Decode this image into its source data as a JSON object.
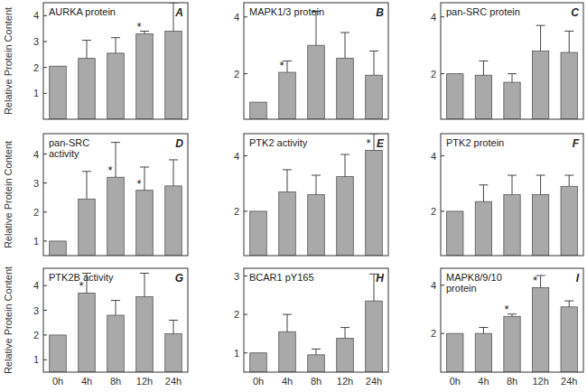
{
  "chart_data": [
    {
      "type": "bar",
      "panel": "A",
      "title": "AURKA protein",
      "ylabel": "Relative Protein Content",
      "categories": [
        "0h",
        "4h",
        "8h",
        "12h",
        "24h"
      ],
      "values": [
        2.05,
        2.35,
        2.55,
        3.3,
        3.4
      ],
      "errors": [
        0,
        0.7,
        0.6,
        0.1,
        1.1
      ],
      "significance": [
        null,
        null,
        null,
        "*",
        null
      ],
      "color": "#a9a9a9",
      "ylim": [
        0,
        4.5
      ],
      "yticks": [
        1,
        2,
        3,
        4
      ],
      "tick_labels": "y"
    },
    {
      "type": "bar",
      "panel": "B",
      "title": "MAPK1/3 protein",
      "categories": [
        "0h",
        "4h",
        "8h",
        "12h",
        "24h"
      ],
      "values": [
        1.0,
        2.05,
        3.0,
        2.55,
        1.95
      ],
      "errors": [
        0,
        0.4,
        1.2,
        0.9,
        0.85
      ],
      "significance": [
        null,
        "*",
        null,
        null,
        null
      ],
      "color": "#a9a9a9",
      "ylim": [
        0.4,
        4.5
      ],
      "yticks": [
        2,
        4
      ],
      "tick_labels": "y"
    },
    {
      "type": "bar",
      "panel": "C",
      "title": "pan-SRC protein",
      "categories": [
        "0h",
        "4h",
        "8h",
        "12h",
        "24h"
      ],
      "values": [
        2.0,
        1.95,
        1.7,
        2.8,
        2.75
      ],
      "errors": [
        0,
        0.5,
        0.3,
        0.9,
        0.75
      ],
      "significance": [
        null,
        null,
        null,
        null,
        null
      ],
      "color": "#a9a9a9",
      "ylim": [
        0.4,
        4.5
      ],
      "yticks": [
        2,
        4
      ],
      "tick_labels": "y"
    },
    {
      "type": "bar",
      "panel": "D",
      "title": "pan-SRC\nactivity",
      "ylabel": "Relative Protein Content",
      "categories": [
        "0h",
        "4h",
        "8h",
        "12h",
        "24h"
      ],
      "values": [
        1.0,
        2.45,
        3.2,
        2.75,
        2.9
      ],
      "errors": [
        0,
        0.95,
        1.2,
        0.8,
        0.9
      ],
      "significance": [
        null,
        null,
        "*",
        "*",
        null
      ],
      "color": "#a9a9a9",
      "ylim": [
        0.5,
        4.7
      ],
      "yticks": [
        1,
        2,
        3,
        4
      ],
      "tick_labels": "y"
    },
    {
      "type": "bar",
      "panel": "E",
      "title": "PTK2 activity",
      "categories": [
        "0h",
        "4h",
        "8h",
        "12h",
        "24h"
      ],
      "values": [
        2.0,
        2.7,
        2.6,
        3.25,
        4.2
      ],
      "errors": [
        0,
        0.8,
        0.7,
        0.8,
        0.6
      ],
      "significance": [
        null,
        null,
        null,
        null,
        "*"
      ],
      "color": "#a9a9a9",
      "ylim": [
        0.4,
        4.8
      ],
      "yticks": [
        2,
        4
      ],
      "tick_labels": "y"
    },
    {
      "type": "bar",
      "panel": "F",
      "title": "PTK2 protein",
      "categories": [
        "0h",
        "4h",
        "8h",
        "12h",
        "24h"
      ],
      "values": [
        2.0,
        2.35,
        2.6,
        2.6,
        2.9
      ],
      "errors": [
        0,
        0.6,
        0.7,
        0.7,
        0.4
      ],
      "significance": [
        null,
        null,
        null,
        null,
        null
      ],
      "color": "#a9a9a9",
      "ylim": [
        0.4,
        4.8
      ],
      "yticks": [
        2,
        4
      ],
      "tick_labels": "y"
    },
    {
      "type": "bar",
      "panel": "G",
      "title": "PTK2B activity",
      "ylabel": "Relative Protein Content",
      "categories": [
        "0h",
        "4h",
        "8h",
        "12h",
        "24h"
      ],
      "values": [
        2.0,
        3.7,
        2.8,
        3.55,
        2.05
      ],
      "errors": [
        0,
        0.8,
        0.6,
        0.95,
        0.55
      ],
      "significance": [
        null,
        "*",
        null,
        null,
        null
      ],
      "color": "#a9a9a9",
      "ylim": [
        0.5,
        4.7
      ],
      "yticks": [
        1,
        2,
        3,
        4
      ]
    },
    {
      "type": "bar",
      "panel": "H",
      "title": "BCAR1  pY165",
      "categories": [
        "0h",
        "4h",
        "8h",
        "12h",
        "24h"
      ],
      "values": [
        1.0,
        1.55,
        0.95,
        1.38,
        2.35
      ],
      "errors": [
        0,
        0.45,
        0.15,
        0.28,
        0.7
      ],
      "significance": [
        null,
        null,
        null,
        null,
        null
      ],
      "color": "#a9a9a9",
      "ylim": [
        0.5,
        3.2
      ],
      "yticks": [
        1,
        2,
        3
      ]
    },
    {
      "type": "bar",
      "panel": "I",
      "title": "MAPK8/9/10\nprotein",
      "categories": [
        "0h",
        "4h",
        "8h",
        "12h",
        "24h"
      ],
      "values": [
        2.0,
        2.0,
        2.7,
        3.9,
        3.1
      ],
      "errors": [
        0,
        0.25,
        0.1,
        0.5,
        0.25
      ],
      "significance": [
        null,
        null,
        "*",
        "*",
        null
      ],
      "color": "#a9a9a9",
      "ylim": [
        0.4,
        4.7
      ],
      "yticks": [
        2,
        4
      ]
    }
  ]
}
